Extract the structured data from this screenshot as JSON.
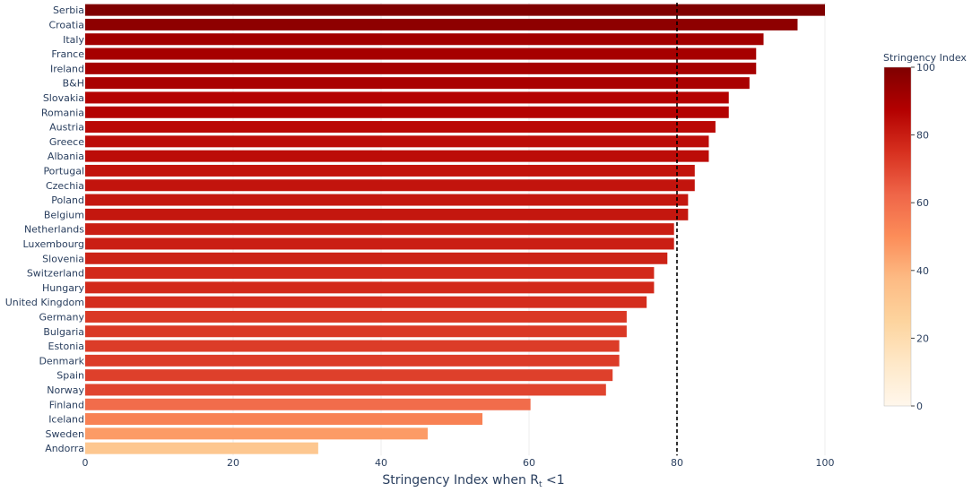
{
  "chart_data": {
    "type": "bar",
    "orientation": "horizontal",
    "categories": [
      "Serbia",
      "Croatia",
      "Italy",
      "France",
      "Ireland",
      "B&H",
      "Slovakia",
      "Romania",
      "Austria",
      "Greece",
      "Albania",
      "Portugal",
      "Czechia",
      "Poland",
      "Belgium",
      "Netherlands",
      "Luxembourg",
      "Slovenia",
      "Switzerland",
      "Hungary",
      "United Kingdom",
      "Germany",
      "Bulgaria",
      "Estonia",
      "Denmark",
      "Spain",
      "Norway",
      "Finland",
      "Iceland",
      "Sweden",
      "Andorra"
    ],
    "values": [
      100,
      96.3,
      91.7,
      90.7,
      90.7,
      89.8,
      87.0,
      87.0,
      85.2,
      84.3,
      84.3,
      82.4,
      82.4,
      81.5,
      81.5,
      79.6,
      79.6,
      78.7,
      76.9,
      76.9,
      75.9,
      73.2,
      73.2,
      72.2,
      72.2,
      71.3,
      70.4,
      60.2,
      53.7,
      46.3,
      31.5
    ],
    "xlabel": "Stringency Index when R",
    "xlabel_subscript": "t",
    "xlabel_suffix": " <1",
    "xlim": [
      0,
      100
    ],
    "x_ticks": [
      0,
      20,
      40,
      60,
      80,
      100
    ],
    "reference_line_x": 80,
    "reference_line_style": "dashed",
    "grid": true,
    "colorscale": "OrRd",
    "colorbar": {
      "title": "Stringency Index",
      "range": [
        0,
        100
      ],
      "ticks": [
        0,
        20,
        40,
        60,
        80,
        100
      ],
      "placement": "right"
    }
  }
}
